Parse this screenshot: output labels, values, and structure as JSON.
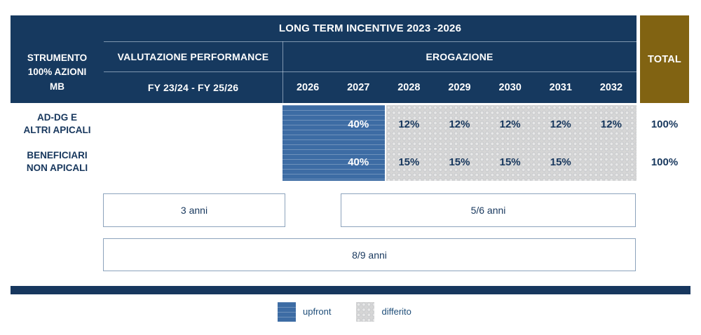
{
  "header": {
    "title": "LONG TERM INCENTIVE 2023 -2026",
    "row_header_line1": "STRUMENTO",
    "row_header_line2": "100% AZIONI",
    "row_header_line3": "MB",
    "valutazione": "VALUTAZIONE PERFORMANCE",
    "valutazione_period": "FY 23/24 - FY 25/26",
    "erogazione": "EROGAZIONE",
    "total": "TOTAL",
    "years": [
      "2026",
      "2027",
      "2028",
      "2029",
      "2030",
      "2031",
      "2032"
    ]
  },
  "rows": [
    {
      "label_line1": "AD-DG E",
      "label_line2": "ALTRI APICALI",
      "values": [
        "",
        "40%",
        "12%",
        "12%",
        "12%",
        "12%",
        "12%"
      ],
      "total": "100%"
    },
    {
      "label_line1": "BENEFICIARI",
      "label_line2": "NON APICALI",
      "values": [
        "",
        "40%",
        "15%",
        "15%",
        "15%",
        "15%",
        ""
      ],
      "total": "100%"
    }
  ],
  "duration": {
    "box1": "3 anni",
    "box2": "5/6 anni",
    "box3": "8/9 anni"
  },
  "legend": {
    "upfront": "upfront",
    "differito": "differito"
  },
  "colors": {
    "navy_header": "#16395f",
    "navy_text": "#17375d",
    "gold_total": "#816312",
    "upfront_blue": "#3d6ca4",
    "differito_gray": "#d6d6d6",
    "bottom_bar": "#17375e",
    "box_border": "#8ca3bc"
  },
  "chart_data": {
    "type": "table",
    "title": "LONG TERM INCENTIVE 2023 -2026",
    "columns": [
      "STRUMENTO 100% AZIONI MB",
      "VALUTAZIONE PERFORMANCE FY 23/24 - FY 25/26",
      "2026",
      "2027",
      "2028",
      "2029",
      "2030",
      "2031",
      "2032",
      "TOTAL"
    ],
    "rows": [
      [
        "AD-DG E ALTRI APICALI",
        "",
        "",
        "40%",
        "12%",
        "12%",
        "12%",
        "12%",
        "12%",
        "100%"
      ],
      [
        "BENEFICIARI NON APICALI",
        "",
        "",
        "40%",
        "15%",
        "15%",
        "15%",
        "15%",
        "",
        "100%"
      ]
    ],
    "upfront_cells": [
      "2027: 40% (both rows)"
    ],
    "deferred_cells": [
      "row1: 12% in 2028-2032",
      "row2: 15% in 2028-2031"
    ],
    "duration_annotations": [
      "3 anni",
      "5/6 anni",
      "8/9 anni"
    ],
    "legend_entries": [
      "upfront",
      "differito"
    ]
  }
}
